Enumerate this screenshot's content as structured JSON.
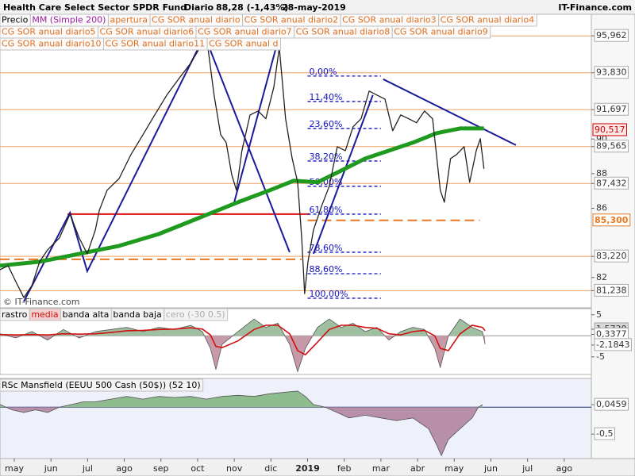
{
  "header": {
    "title": "Health Care Select Sector SPDR Fund",
    "period": "Diario",
    "last": "88,28 (-1,43%)",
    "date": "28-may-2019",
    "source": "IT-Finance.com",
    "watermark": "© IT-Finance.com"
  },
  "chart_data": [
    {
      "type": "line",
      "xlim": [
        -0.39,
        15.74
      ],
      "ylim": [
        80.5,
        96.2
      ],
      "yticks": [
        {
          "value": 95.962,
          "label": "95,962"
        },
        {
          "value": 93.83,
          "label": "93,830"
        },
        {
          "value": 91.697,
          "label": "91,697"
        },
        90,
        {
          "value": 89.565,
          "label": "89,565"
        },
        88,
        {
          "value": 87.432,
          "label": "87,432"
        },
        86,
        {
          "value": 83.22,
          "label": "83,220"
        },
        82,
        {
          "value": 81.238,
          "label": "81,238"
        }
      ],
      "level_color": "#f0a060",
      "series": [
        {
          "name": "Precio",
          "color": "#222222",
          "x": [
            -0.39,
            -0.17,
            0.04,
            0.26,
            0.48,
            0.69,
            0.91,
            1.23,
            1.52,
            1.77,
            1.99,
            2.21,
            2.32,
            2.53,
            2.86,
            3.18,
            3.51,
            3.83,
            4.16,
            4.48,
            4.81,
            5.13,
            5.28,
            5.45,
            5.63,
            5.78,
            5.93,
            6.06,
            6.21,
            6.43,
            6.65,
            6.86,
            7.08,
            7.23,
            7.4,
            7.58,
            7.73,
            7.84,
            7.92,
            8.01,
            8.16,
            8.38,
            8.59,
            8.81,
            9.03,
            9.24,
            9.46,
            9.68,
            9.89,
            10.11,
            10.32,
            10.54,
            10.76,
            10.97,
            11.19,
            11.41,
            11.62,
            11.73,
            11.9,
            12.06,
            12.27,
            12.42,
            12.6,
            12.71,
            12.81
          ],
          "values": [
            82.45,
            82.68,
            81.76,
            80.84,
            81.53,
            82.91,
            83.6,
            84.28,
            85.66,
            84.28,
            83.37,
            84.74,
            85.89,
            87.04,
            87.72,
            89.1,
            90.25,
            91.39,
            92.54,
            93.46,
            94.38,
            95.52,
            95.29,
            92.54,
            90.25,
            89.79,
            87.95,
            87.04,
            89.33,
            91.39,
            91.62,
            91.17,
            93.0,
            95.29,
            91.17,
            88.87,
            87.5,
            84.28,
            81.07,
            82.91,
            84.74,
            86.12,
            87.27,
            89.56,
            89.33,
            90.71,
            91.17,
            92.77,
            92.54,
            92.31,
            90.48,
            91.39,
            91.17,
            90.94,
            91.62,
            91.17,
            87.04,
            86.35,
            88.87,
            89.1,
            89.56,
            87.5,
            89.33,
            90.02,
            88.28
          ]
        },
        {
          "name": "MM (Simple 200)",
          "color": "#1e9a1e",
          "x": [
            -0.39,
            0.69,
            1.77,
            2.86,
            3.94,
            5.02,
            6.1,
            6.97,
            7.62,
            8.27,
            8.92,
            9.57,
            10.22,
            10.87,
            11.52,
            12.16,
            12.81
          ],
          "values": [
            82.68,
            82.91,
            83.37,
            83.83,
            84.51,
            85.43,
            86.35,
            87.04,
            87.59,
            87.5,
            88.18,
            88.87,
            89.33,
            89.79,
            90.34,
            90.61,
            90.61
          ]
        }
      ],
      "series_label_colors": [
        "#000000",
        "#a020a0"
      ],
      "indicator_tags": [
        "apertura",
        "CG SOR anual diario",
        "CG SOR anual diario2",
        "CG SOR anual diario3",
        "CG SOR anual diario4",
        "CG SOR anual diario5",
        "CG SOR anual diario6",
        "CG SOR anual diario7",
        "CG SOR anual diario8",
        "CG SOR anual diario9",
        "CG SOR anual diario10",
        "CG SOR anual diario11",
        "CG SOR anual d"
      ],
      "indicator_tag_color": "#e07020",
      "price_tags": [
        {
          "value": 90.517,
          "label": "90,517",
          "color": "#d00000"
        },
        {
          "value": 85.3,
          "label": "85,300",
          "color": "#e87722"
        }
      ],
      "dashed_levels": [
        {
          "value": 85.3,
          "x": [
            8.0,
            12.7
          ],
          "color": "#e87722"
        },
        {
          "value": 83.05,
          "x": [
            -0.39,
            7.84
          ],
          "color": "#e87722"
        }
      ],
      "support_line": {
        "value": 85.66,
        "x": [
          1.45,
          8.05
        ],
        "color": "#e01010"
      },
      "fib_color": "#1010c0",
      "fib_range": [
        8.0,
        10.0
      ],
      "fib_levels": [
        {
          "label": "0,00%",
          "value": 93.64
        },
        {
          "label": "11,40%",
          "value": 92.17
        },
        {
          "label": "23,60%",
          "value": 90.61
        },
        {
          "label": "38,20%",
          "value": 88.73
        },
        {
          "label": "50,00%",
          "value": 87.27
        },
        {
          "label": "61,80%",
          "value": 85.66
        },
        {
          "label": "78,60%",
          "value": 83.46
        },
        {
          "label": "88,60%",
          "value": 82.22
        },
        {
          "label": "100,00%",
          "value": 80.8
        }
      ],
      "trendline_color": "#1a1a9a",
      "trendlines": [
        {
          "x": [
            0.26,
            1.52,
            1.99,
            5.19,
            7.51
          ],
          "values": [
            80.61,
            85.75,
            82.36,
            95.98,
            83.46
          ]
        },
        {
          "x": [
            6.0,
            7.23
          ],
          "values": [
            86.35,
            95.98
          ]
        },
        {
          "x": [
            8.16,
            9.78
          ],
          "values": [
            83.37,
            92.54
          ]
        },
        {
          "x": [
            10.06,
            13.68
          ],
          "values": [
            93.46,
            89.65
          ]
        }
      ]
    },
    {
      "type": "area",
      "xlim": [
        -0.39,
        15.74
      ],
      "ylim": [
        -8.8,
        5.9
      ],
      "yticks": [
        5,
        {
          "value": 1.573,
          "label": "1,5730"
        },
        {
          "value": 0.3377,
          "label": "0,3377"
        },
        {
          "value": -2.1843,
          "label": "-2,1843"
        },
        -5
      ],
      "indicator_tags": [
        "rastro",
        "media",
        "banda alta",
        "banda baja",
        "cero (-30 0.5)"
      ],
      "indicator_tag_colors": [
        "#000000",
        "#d01010",
        "#000000",
        "#000000",
        "#aaaaaa"
      ],
      "series": [
        {
          "name": "rastro",
          "color": "#9fc0a0",
          "negative_color": "#c89aa8",
          "x": [
            -0.39,
            0.04,
            0.48,
            0.91,
            1.34,
            1.77,
            2.21,
            2.64,
            3.07,
            3.51,
            3.94,
            4.37,
            4.81,
            5.13,
            5.35,
            5.5,
            5.67,
            6.1,
            6.54,
            6.86,
            7.19,
            7.51,
            7.73,
            7.94,
            8.27,
            8.59,
            8.92,
            9.24,
            9.57,
            9.89,
            10.22,
            10.54,
            10.87,
            11.19,
            11.47,
            11.62,
            11.84,
            12.16,
            12.49,
            12.77,
            12.84
          ],
          "values": [
            0.5,
            -0.5,
            1,
            -1,
            1.5,
            -0.5,
            1,
            1.5,
            2,
            1,
            2,
            1.5,
            2.5,
            1,
            -3,
            -8,
            -2,
            1,
            4,
            2,
            3,
            -2,
            -8.5,
            -3,
            2,
            4,
            2,
            3,
            1,
            2,
            -1,
            1,
            2,
            1.5,
            -3,
            -7.5,
            0,
            4,
            2,
            1,
            -2
          ]
        },
        {
          "name": "media",
          "color": "#d01010",
          "x": [
            -0.39,
            0.04,
            0.48,
            0.91,
            1.34,
            1.77,
            2.21,
            2.64,
            3.07,
            3.51,
            3.94,
            4.37,
            4.81,
            5.13,
            5.35,
            5.5,
            5.67,
            6.1,
            6.54,
            6.86,
            7.19,
            7.51,
            7.73,
            7.94,
            8.27,
            8.59,
            8.92,
            9.24,
            9.57,
            9.89,
            10.22,
            10.54,
            10.87,
            11.19,
            11.47,
            11.62,
            11.84,
            12.16,
            12.49,
            12.77,
            12.84
          ],
          "values": [
            0.3,
            0.2,
            0.3,
            0.2,
            0.5,
            0.4,
            0.5,
            0.8,
            1.2,
            1.3,
            1.5,
            1.6,
            1.9,
            1.6,
            0.2,
            -2.5,
            -2.8,
            -1.2,
            1.5,
            2.5,
            2.5,
            0.5,
            -3.5,
            -4.5,
            -1.5,
            1.5,
            2.5,
            2.5,
            2,
            1.8,
            0.5,
            0.2,
            1,
            1.3,
            0,
            -3,
            -3.5,
            0.5,
            2.5,
            2,
            1.2
          ]
        }
      ]
    },
    {
      "type": "area",
      "title": "RSc Mansfield (EEUU 500 Cash (50$)) (52 10)",
      "xlim": [
        -0.39,
        15.74
      ],
      "ylim": [
        -0.91,
        0.49
      ],
      "yticks": [
        {
          "value": 0.0459,
          "label": "0,0459"
        },
        {
          "value": -0.5,
          "label": "-0,5"
        }
      ],
      "xticks": [
        {
          "value": 0,
          "label": "may"
        },
        {
          "value": 1,
          "label": "jun"
        },
        {
          "value": 2,
          "label": "jul"
        },
        {
          "value": 3,
          "label": "ago"
        },
        {
          "value": 4,
          "label": "sep"
        },
        {
          "value": 5,
          "label": "oct"
        },
        {
          "value": 6,
          "label": "nov"
        },
        {
          "value": 7,
          "label": "dic"
        },
        {
          "value": 8,
          "label": "2019"
        },
        {
          "value": 9,
          "label": "feb"
        },
        {
          "value": 10,
          "label": "mar"
        },
        {
          "value": 11,
          "label": "abr"
        },
        {
          "value": 12,
          "label": "may"
        },
        {
          "value": 13,
          "label": "jun"
        },
        {
          "value": 14,
          "label": "jul"
        },
        {
          "value": 15,
          "label": "ago"
        }
      ],
      "series": [
        {
          "color": "#8fbc8f",
          "negative_color": "#b88fa8",
          "x": [
            -0.39,
            -0.06,
            0.26,
            0.58,
            0.91,
            1.23,
            1.56,
            1.88,
            2.21,
            2.64,
            3.07,
            3.51,
            3.94,
            4.37,
            4.81,
            5.24,
            5.67,
            6.1,
            6.54,
            6.97,
            7.4,
            7.73,
            7.94,
            8.16,
            8.48,
            8.81,
            9.13,
            9.57,
            10.0,
            10.43,
            10.87,
            11.3,
            11.52,
            11.65,
            11.84,
            12.16,
            12.49,
            12.66,
            12.77
          ],
          "values": [
            0.05,
            -0.05,
            -0.1,
            -0.05,
            -0.1,
            0.0,
            0.05,
            0.1,
            0.1,
            0.15,
            0.2,
            0.15,
            0.2,
            0.18,
            0.2,
            0.15,
            0.2,
            0.22,
            0.2,
            0.25,
            0.28,
            0.3,
            0.2,
            0.05,
            0.0,
            -0.1,
            -0.2,
            -0.15,
            -0.2,
            -0.25,
            -0.2,
            -0.4,
            -0.7,
            -0.9,
            -0.6,
            -0.4,
            -0.2,
            0.0,
            0.0459
          ]
        }
      ]
    }
  ]
}
